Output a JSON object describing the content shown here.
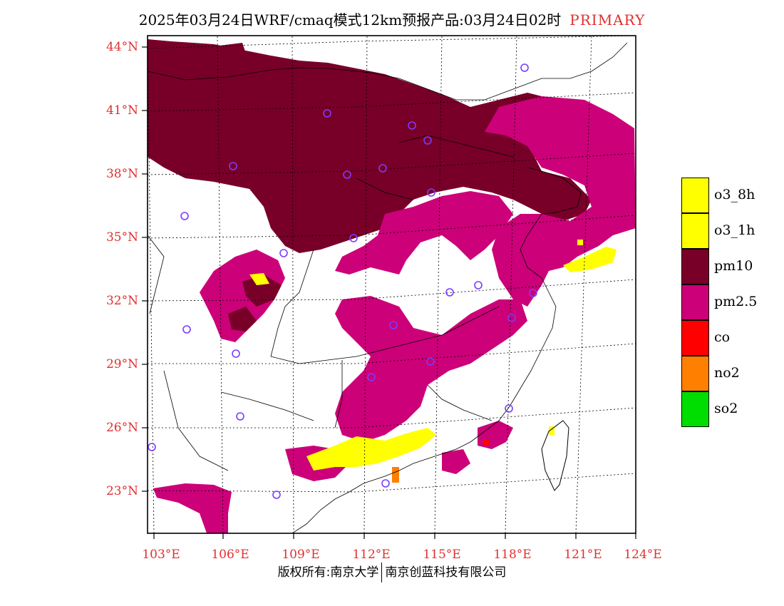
{
  "title": {
    "text": "2025年03月24日WRF/cmaq模式12km预报产品:03月24日02时",
    "tag": "PRIMARY"
  },
  "axes": {
    "lat_labels": [
      "44°N",
      "41°N",
      "38°N",
      "35°N",
      "32°N",
      "29°N",
      "26°N",
      "23°N"
    ],
    "lon_labels": [
      "103°E",
      "106°E",
      "109°E",
      "112°E",
      "115°E",
      "118°E",
      "121°E",
      "124°E"
    ]
  },
  "legend": [
    {
      "label": "o3_8h",
      "color": "#ffff00"
    },
    {
      "label": "o3_1h",
      "color": "#ffff00"
    },
    {
      "label": "pm10",
      "color": "#780028"
    },
    {
      "label": "pm2.5",
      "color": "#cc0078"
    },
    {
      "label": "co",
      "color": "#ff0000"
    },
    {
      "label": "no2",
      "color": "#ff7f00"
    },
    {
      "label": "so2",
      "color": "#00dd00"
    }
  ],
  "footer": {
    "left": "版权所有:南京大学",
    "right": "南京创蓝科技有限公司"
  }
}
